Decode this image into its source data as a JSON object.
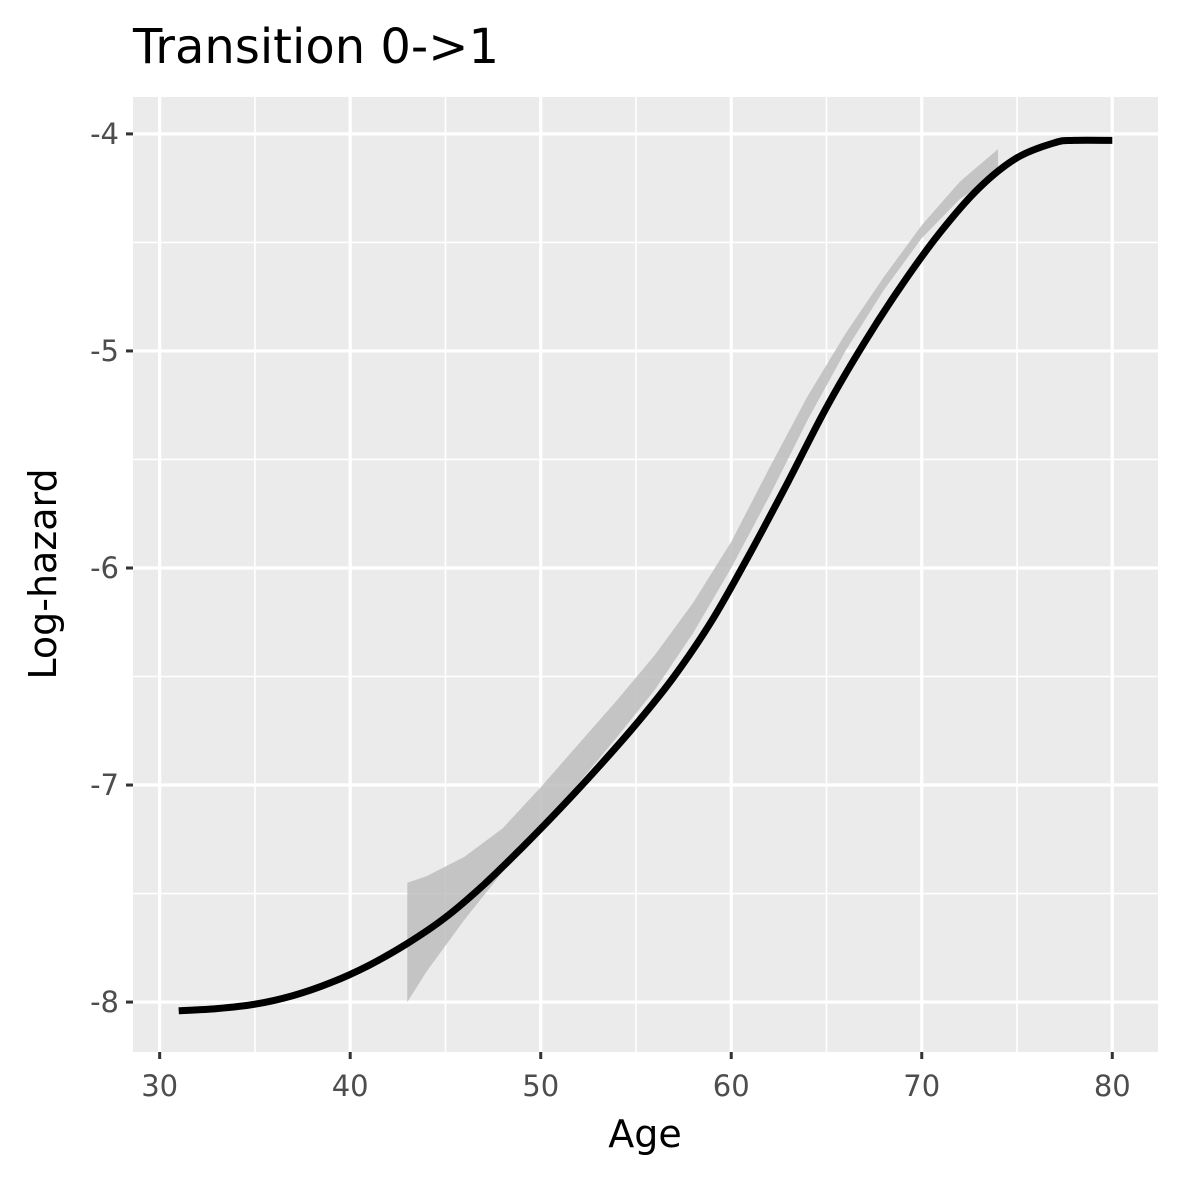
{
  "chart_data": {
    "type": "line",
    "title": "Transition 0->1",
    "xlabel": "Age",
    "ylabel": "Log-hazard",
    "xlim": [
      28.6,
      82.4
    ],
    "ylim": [
      -8.23,
      -3.83
    ],
    "x_ticks": [
      30,
      40,
      50,
      60,
      70,
      80
    ],
    "y_ticks": [
      -8,
      -7,
      -6,
      -5,
      -4
    ],
    "x_tick_labels": [
      "30",
      "40",
      "50",
      "60",
      "70",
      "80"
    ],
    "y_tick_labels": [
      "-8",
      "-7",
      "-6",
      "-5",
      "-4"
    ],
    "grid": true,
    "legend": "none",
    "colors": {
      "panel": "#ebebeb",
      "grid": "#ffffff",
      "line": "#000000",
      "ribbon": "#bdbdbd"
    },
    "series": [
      {
        "x": [
          31,
          33,
          35,
          37,
          39,
          41,
          43,
          45,
          47,
          49,
          51,
          53,
          55,
          57,
          59,
          61,
          63,
          65,
          67,
          69,
          71,
          73,
          75,
          77,
          78,
          80
        ],
        "y": [
          -8.04,
          -8.03,
          -8.01,
          -7.97,
          -7.91,
          -7.83,
          -7.73,
          -7.61,
          -7.46,
          -7.29,
          -7.11,
          -6.92,
          -6.72,
          -6.5,
          -6.24,
          -5.93,
          -5.6,
          -5.26,
          -4.96,
          -4.69,
          -4.45,
          -4.25,
          -4.11,
          -4.04,
          -4.03,
          -4.03
        ]
      }
    ],
    "ribbon": {
      "x": [
        43,
        44,
        46,
        48,
        50,
        52,
        54,
        56,
        58,
        60,
        62,
        64,
        66,
        68,
        70,
        72,
        74
      ],
      "lower": [
        -8.0,
        -7.86,
        -7.62,
        -7.4,
        -7.2,
        -6.99,
        -6.78,
        -6.56,
        -6.3,
        -6.0,
        -5.67,
        -5.32,
        -5.0,
        -4.72,
        -4.48,
        -4.3,
        -4.18
      ],
      "upper": [
        -7.45,
        -7.42,
        -7.33,
        -7.2,
        -7.01,
        -6.81,
        -6.61,
        -6.4,
        -6.16,
        -5.88,
        -5.54,
        -5.21,
        -4.92,
        -4.66,
        -4.42,
        -4.22,
        -4.07
      ]
    }
  }
}
